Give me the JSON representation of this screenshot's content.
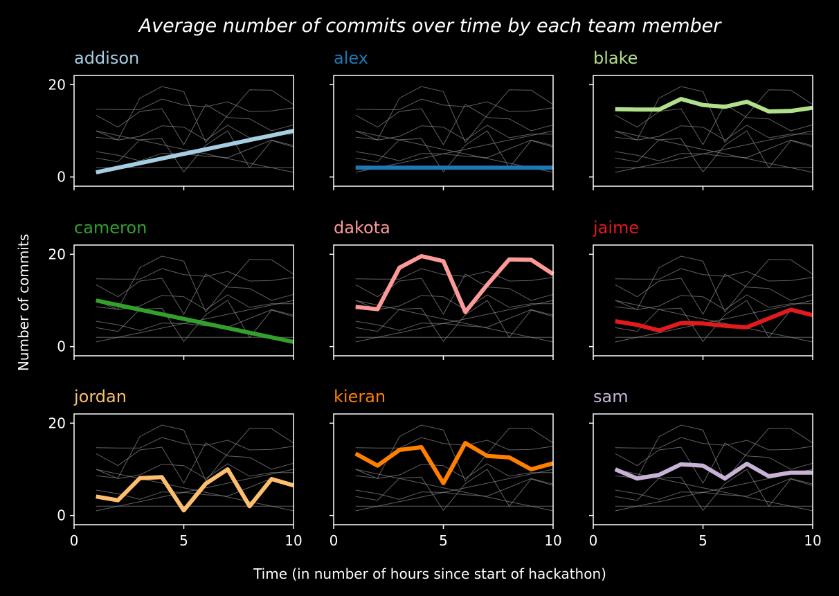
{
  "chart_data": {
    "type": "line",
    "title": "Average number of commits over time by each team member",
    "xlabel": "Time (in number of hours since start of hackathon)",
    "ylabel": "Number of commits",
    "xlim": [
      0,
      10
    ],
    "ylim": [
      -2,
      22
    ],
    "xticks": [
      0,
      5,
      10
    ],
    "yticks": [
      0,
      20
    ],
    "grid": false,
    "layout": "3x3 small multiples, background series in gray",
    "x": [
      1,
      2,
      3,
      4,
      5,
      6,
      7,
      8,
      9,
      10
    ],
    "series": [
      {
        "name": "addison",
        "color": "#a6cee3",
        "values": [
          1,
          2,
          3,
          4,
          5,
          6,
          7,
          8,
          9,
          10
        ]
      },
      {
        "name": "alex",
        "color": "#1f78b4",
        "values": [
          2,
          2,
          2,
          2,
          2,
          2,
          2,
          2,
          2,
          2
        ]
      },
      {
        "name": "blake",
        "color": "#b2df8a",
        "values": [
          14.7,
          14.6,
          14.6,
          16.9,
          15.6,
          15.2,
          16.3,
          14.2,
          14.3,
          15.0
        ]
      },
      {
        "name": "cameron",
        "color": "#33a02c",
        "values": [
          10,
          9,
          8,
          7,
          6,
          5,
          4,
          3,
          2,
          1
        ]
      },
      {
        "name": "dakota",
        "color": "#fb9a99",
        "values": [
          8.6,
          8.1,
          17.1,
          19.6,
          18.5,
          7.5,
          13.4,
          18.9,
          18.8,
          15.7
        ]
      },
      {
        "name": "jaime",
        "color": "#e31a1c",
        "values": [
          5.5,
          4.7,
          3.5,
          5.1,
          5.0,
          4.5,
          4.2,
          6.1,
          8.0,
          6.8
        ]
      },
      {
        "name": "jordan",
        "color": "#fdbf6f",
        "values": [
          4.1,
          3.3,
          8.1,
          8.3,
          1.1,
          6.9,
          10.0,
          2.0,
          7.9,
          6.5
        ]
      },
      {
        "name": "kieran",
        "color": "#ff7f00",
        "values": [
          13.4,
          10.8,
          14.2,
          14.8,
          7.0,
          15.7,
          12.9,
          12.6,
          10.0,
          11.3
        ]
      },
      {
        "name": "sam",
        "color": "#cab2d6",
        "values": [
          10.0,
          8.0,
          8.8,
          11.1,
          10.8,
          8.0,
          11.2,
          8.5,
          9.3,
          9.3
        ]
      }
    ]
  }
}
